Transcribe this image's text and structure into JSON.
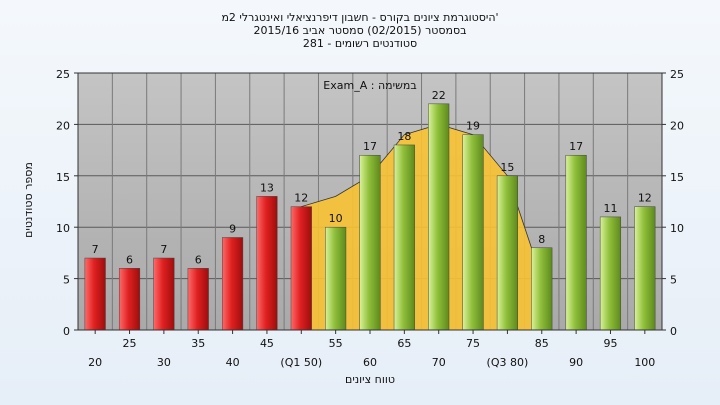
{
  "chart_data": {
    "type": "bar",
    "title_lines": [
      "'היסטוגרמת ציונים בקורס - חשבון דיפרנציאלי ואינטגרלי 2מ",
      "בסמסטר  (02/2015)  סמסטר אביב 2015/16",
      "סטודנטים רשומים - 281"
    ],
    "annotation": "במשימה : Exam_A",
    "xlabel": "טווח ציונים",
    "ylabel": "מספר סטודנטים",
    "ylim": [
      0,
      25
    ],
    "yticks": [
      0,
      5,
      10,
      15,
      20,
      25
    ],
    "grid": true,
    "categories": [
      "20",
      "25",
      "30",
      "35",
      "40",
      "45",
      "(Q1 50)",
      "55",
      "60",
      "65",
      "70",
      "75",
      "(Q3 80)",
      "85",
      "90",
      "95",
      "100"
    ],
    "values": [
      7,
      6,
      7,
      6,
      9,
      13,
      12,
      10,
      17,
      18,
      22,
      19,
      15,
      8,
      17,
      11,
      12
    ],
    "bar_colors": [
      "red",
      "red",
      "red",
      "red",
      "red",
      "red",
      "red",
      "green",
      "green",
      "green",
      "green",
      "green",
      "green",
      "green",
      "green",
      "green",
      "green"
    ],
    "band": {
      "color": "#f7c232",
      "x": [
        "(Q1 50)",
        "55",
        "60",
        "65",
        "70",
        "75",
        "(Q3 80)",
        "85"
      ],
      "values": [
        12,
        13,
        15,
        19,
        20,
        19,
        15,
        5
      ]
    },
    "colors": {
      "red": "#e02020",
      "green": "#8fbf3a",
      "plot_bg": "#b9b9b9"
    }
  }
}
